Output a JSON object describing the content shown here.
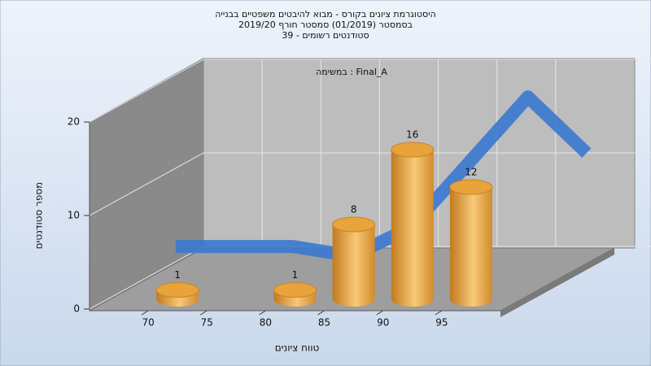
{
  "chart_data": {
    "type": "histogram",
    "title": [
      "היסטוגרמת ציונים בקורס - מבוא להיבטים משפטיים בבנייה",
      "בסמסטר  (01/2019)  סמסטר חורף 2019/20",
      "סטודנטים רשומים - 39"
    ],
    "annotation": "במשימה : Final_A",
    "xlabel": "טווח ציונים",
    "ylabel": "מספר סטודנטים",
    "bins": [
      70,
      75,
      80,
      85,
      90,
      95,
      100
    ],
    "values": [
      1,
      0,
      1,
      8,
      16,
      12
    ],
    "color": "#e8a33a",
    "curve": {
      "x": [
        67,
        72,
        77,
        82,
        87,
        92,
        97,
        102
      ],
      "values": [
        3,
        3,
        3,
        2,
        5,
        12,
        19,
        13
      ],
      "color": "#3a78d0"
    },
    "xlim": [
      65,
      100
    ],
    "xticks": [
      70,
      75,
      80,
      85,
      90,
      95
    ],
    "ylim": [
      0,
      20
    ],
    "yticks": [
      0,
      10,
      20
    ],
    "grid": true
  }
}
